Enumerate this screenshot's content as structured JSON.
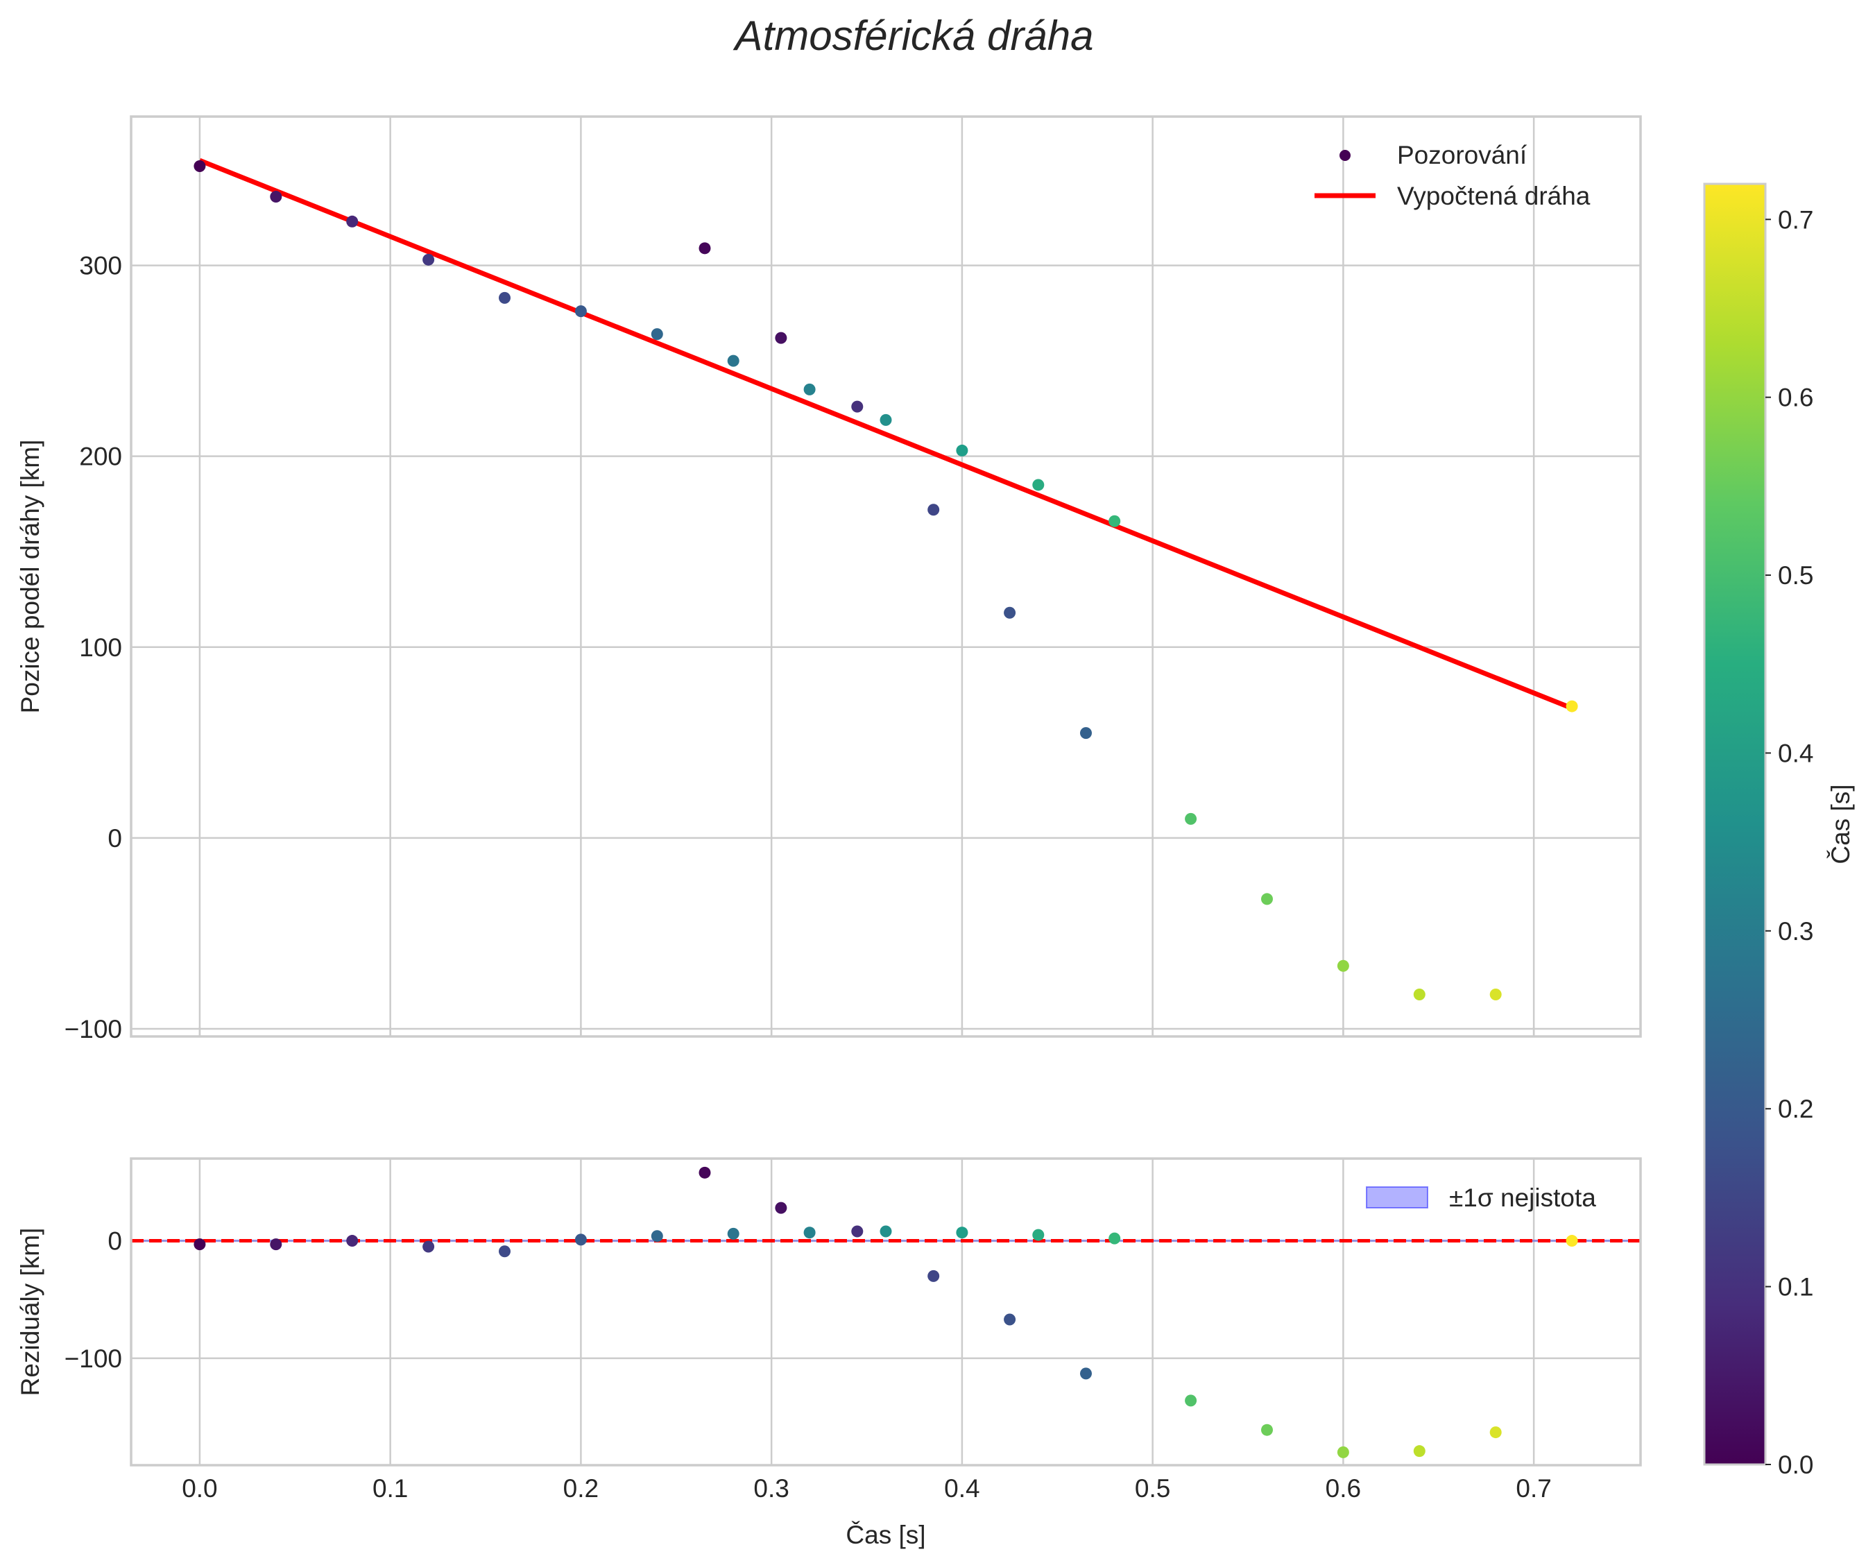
{
  "chart_data": [
    {
      "type": "scatter",
      "title": "Atmosférická dráha",
      "xlabel": "",
      "ylabel": "Pozice podél dráhy [km]",
      "xlim": [
        -0.036,
        0.756
      ],
      "ylim": [
        -104,
        378
      ],
      "xticks": [
        0.0,
        0.1,
        0.2,
        0.3,
        0.4,
        0.5,
        0.6,
        0.7
      ],
      "yticks": [
        -100,
        0,
        100,
        200,
        300
      ],
      "xtick_labels": [],
      "ytick_labels": [
        "−100",
        "0",
        "100",
        "200",
        "300"
      ],
      "grid": true,
      "legend_position": "top-right",
      "series": [
        {
          "name": "Pozorování",
          "kind": "scatter",
          "colormap": "viridis",
          "points": [
            {
              "x": 0.0,
              "y": 352,
              "c": 0.0
            },
            {
              "x": 0.04,
              "y": 336,
              "c": 0.04
            },
            {
              "x": 0.08,
              "y": 323,
              "c": 0.08
            },
            {
              "x": 0.12,
              "y": 303,
              "c": 0.12
            },
            {
              "x": 0.16,
              "y": 283,
              "c": 0.16
            },
            {
              "x": 0.2,
              "y": 276,
              "c": 0.2
            },
            {
              "x": 0.24,
              "y": 264,
              "c": 0.24
            },
            {
              "x": 0.265,
              "y": 309,
              "c": 0.01
            },
            {
              "x": 0.28,
              "y": 250,
              "c": 0.28
            },
            {
              "x": 0.305,
              "y": 262,
              "c": 0.03
            },
            {
              "x": 0.32,
              "y": 235,
              "c": 0.32
            },
            {
              "x": 0.345,
              "y": 226,
              "c": 0.1
            },
            {
              "x": 0.36,
              "y": 219,
              "c": 0.36
            },
            {
              "x": 0.385,
              "y": 172,
              "c": 0.15
            },
            {
              "x": 0.4,
              "y": 203,
              "c": 0.4
            },
            {
              "x": 0.425,
              "y": 118,
              "c": 0.18
            },
            {
              "x": 0.44,
              "y": 185,
              "c": 0.44
            },
            {
              "x": 0.465,
              "y": 55,
              "c": 0.22
            },
            {
              "x": 0.48,
              "y": 166,
              "c": 0.48
            },
            {
              "x": 0.52,
              "y": 10,
              "c": 0.52
            },
            {
              "x": 0.56,
              "y": -32,
              "c": 0.56
            },
            {
              "x": 0.6,
              "y": -67,
              "c": 0.6
            },
            {
              "x": 0.64,
              "y": -82,
              "c": 0.65
            },
            {
              "x": 0.68,
              "y": -82,
              "c": 0.68
            },
            {
              "x": 0.72,
              "y": 69,
              "c": 0.72
            }
          ]
        },
        {
          "name": "Vypočtená dráha",
          "kind": "line",
          "color": "#ff0000",
          "x": [
            0.0,
            0.72
          ],
          "y": [
            355,
            68
          ]
        }
      ]
    },
    {
      "type": "scatter",
      "title": "",
      "xlabel": "Čas [s]",
      "ylabel": "Reziduály [km]",
      "xlim": [
        -0.036,
        0.756
      ],
      "ylim": [
        -191,
        70
      ],
      "xticks": [
        0.0,
        0.1,
        0.2,
        0.3,
        0.4,
        0.5,
        0.6,
        0.7
      ],
      "yticks": [
        -100,
        0
      ],
      "xtick_labels": [
        "0.0",
        "0.1",
        "0.2",
        "0.3",
        "0.4",
        "0.5",
        "0.6",
        "0.7"
      ],
      "ytick_labels": [
        "−100",
        "0"
      ],
      "grid": true,
      "legend_position": "top-right",
      "series": [
        {
          "name": "Reziduály",
          "kind": "scatter",
          "colormap": "viridis",
          "points": [
            {
              "x": 0.0,
              "y": -3,
              "c": 0.0
            },
            {
              "x": 0.04,
              "y": -3,
              "c": 0.04
            },
            {
              "x": 0.08,
              "y": 0,
              "c": 0.08
            },
            {
              "x": 0.12,
              "y": -5,
              "c": 0.12
            },
            {
              "x": 0.16,
              "y": -9,
              "c": 0.16
            },
            {
              "x": 0.2,
              "y": 1,
              "c": 0.2
            },
            {
              "x": 0.24,
              "y": 4,
              "c": 0.24
            },
            {
              "x": 0.265,
              "y": 58,
              "c": 0.01
            },
            {
              "x": 0.28,
              "y": 6,
              "c": 0.28
            },
            {
              "x": 0.305,
              "y": 28,
              "c": 0.03
            },
            {
              "x": 0.32,
              "y": 7,
              "c": 0.32
            },
            {
              "x": 0.345,
              "y": 8,
              "c": 0.1
            },
            {
              "x": 0.36,
              "y": 8,
              "c": 0.36
            },
            {
              "x": 0.385,
              "y": -30,
              "c": 0.15
            },
            {
              "x": 0.4,
              "y": 7,
              "c": 0.4
            },
            {
              "x": 0.425,
              "y": -67,
              "c": 0.18
            },
            {
              "x": 0.44,
              "y": 5,
              "c": 0.44
            },
            {
              "x": 0.465,
              "y": -113,
              "c": 0.22
            },
            {
              "x": 0.48,
              "y": 2,
              "c": 0.48
            },
            {
              "x": 0.52,
              "y": -136,
              "c": 0.52
            },
            {
              "x": 0.56,
              "y": -161,
              "c": 0.56
            },
            {
              "x": 0.6,
              "y": -180,
              "c": 0.6
            },
            {
              "x": 0.64,
              "y": -179,
              "c": 0.65
            },
            {
              "x": 0.68,
              "y": -163,
              "c": 0.68
            },
            {
              "x": 0.72,
              "y": 0,
              "c": 0.72
            }
          ]
        },
        {
          "name": "±1σ nejistota",
          "kind": "band",
          "color": "#0000ff",
          "alpha": 0.3,
          "y_lower": -1,
          "y_upper": 1
        },
        {
          "name": "zero line",
          "kind": "hline",
          "y": 0,
          "color": "#ff0000",
          "style": "dashed"
        }
      ]
    }
  ],
  "colorbar": {
    "label": "Čas [s]",
    "colormap": "viridis",
    "range": [
      0.0,
      0.72
    ],
    "ticks": [
      0.0,
      0.1,
      0.2,
      0.3,
      0.4,
      0.5,
      0.6,
      0.7
    ],
    "tick_labels": [
      "0.0",
      "0.1",
      "0.2",
      "0.3",
      "0.4",
      "0.5",
      "0.6",
      "0.7"
    ]
  },
  "legend_main": {
    "items": [
      "Pozorování",
      "Vypočtená dráha"
    ]
  },
  "legend_residual": {
    "items": [
      "±1σ nejistota"
    ]
  },
  "colors": {
    "fit_line": "#ff0000",
    "band": "#0000ff",
    "grid": "#cccccc",
    "text": "#262626"
  }
}
